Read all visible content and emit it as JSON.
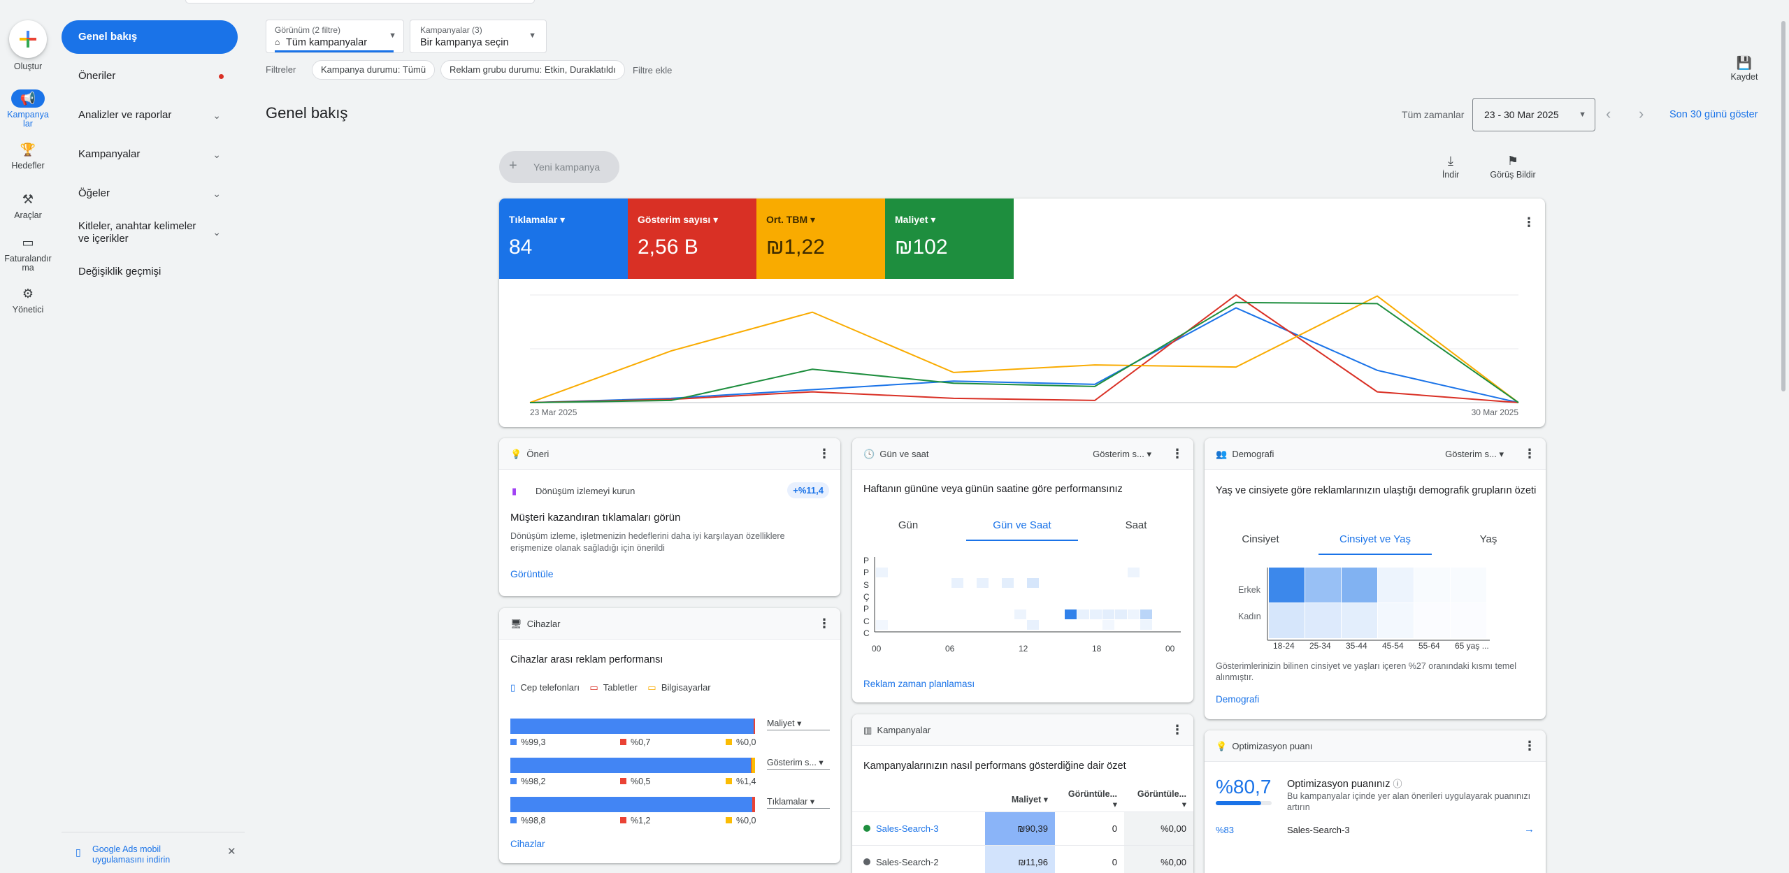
{
  "rail": {
    "create": "Oluştur",
    "campaigns": "Kampanyalar",
    "goals": "Hedefler",
    "tools": "Araçlar",
    "billing": "Faturalandırma",
    "admin": "Yönetici"
  },
  "nav": {
    "items": [
      {
        "label": "Genel bakış"
      },
      {
        "label": "Öneriler"
      },
      {
        "label": "Analizler ve raporlar"
      },
      {
        "label": "Kampanyalar"
      },
      {
        "label": "Öğeler"
      },
      {
        "label": "Kitleler, anahtar kelimeler ve içerikler"
      },
      {
        "label": "Değişiklik geçmişi"
      }
    ],
    "mobile_promo": "Google Ads mobil uygulamasını indirin"
  },
  "topbar": {
    "view_label": "Görünüm (2 filtre)",
    "view_value": "Tüm kampanyalar",
    "camp_label": "Kampanyalar (3)",
    "camp_value": "Bir kampanya seçin",
    "filters_label": "Filtreler",
    "chip1": "Kampanya durumu: Tümü",
    "chip2": "Reklam grubu durumu: Etkin, Duraklatıldı",
    "add_filter": "Filtre ekle",
    "save": "Kaydet"
  },
  "header": {
    "title": "Genel bakış",
    "all_time": "Tüm zamanlar",
    "date_range": "23 - 30 Mar 2025",
    "last30": "Son 30 günü göster"
  },
  "actions": {
    "new_campaign": "Yeni kampanya",
    "download": "İndir",
    "feedback": "Görüş Bildir"
  },
  "metrics": [
    {
      "label": "Tıklamalar",
      "value": "84",
      "color": "#1a73e8"
    },
    {
      "label": "Gösterim sayısı",
      "value": "2,56 B",
      "color": "#d93025"
    },
    {
      "label": "Ort. TBM",
      "value": "₪1,22",
      "color": "#f9ab00"
    },
    {
      "label": "Maliyet",
      "value": "₪102",
      "color": "#1e8e3e"
    }
  ],
  "chart_data": {
    "type": "line",
    "x": [
      "23 Mar 2025",
      "24 Mar 2025",
      "25 Mar 2025",
      "26 Mar 2025",
      "27 Mar 2025",
      "28 Mar 2025",
      "29 Mar 2025",
      "30 Mar 2025"
    ],
    "x_tick_labels": [
      "23 Mar 2025",
      "30 Mar 2025"
    ],
    "grid": true,
    "series": [
      {
        "values": [
          0,
          0.04,
          0.12,
          0.2,
          0.17,
          0.88,
          0.3,
          0
        ],
        "color": "#1a73e8"
      },
      {
        "values": [
          0,
          0.03,
          0.1,
          0.04,
          0.02,
          1.0,
          0.1,
          0
        ],
        "color": "#d93025"
      },
      {
        "values": [
          0,
          0.48,
          0.84,
          0.28,
          0.35,
          0.33,
          0.99,
          0
        ],
        "color": "#f9ab00"
      },
      {
        "values": [
          0,
          0.02,
          0.31,
          0.18,
          0.15,
          0.93,
          0.92,
          0
        ],
        "color": "#1e8e3e"
      }
    ]
  },
  "rec": {
    "title": "Öneri",
    "item": "Dönüşüm izlemeyi kurun",
    "badge": "+%11,4",
    "heading": "Müşteri kazandıran tıklamaları görün",
    "desc": "Dönüşüm izleme, işletmenizin hedeflerini daha iyi karşılayan özelliklere erişmenize olanak sağladığı için önerildi",
    "link": "Görüntüle"
  },
  "dayhour": {
    "title": "Gün ve saat",
    "metric": "Gösterim s...",
    "heading": "Haftanın gününe veya günün saatine göre performansınız",
    "tabs": [
      "Gün",
      "Gün ve Saat",
      "Saat"
    ],
    "days": [
      "P",
      "P",
      "S",
      "Ç",
      "P",
      "C",
      "C"
    ],
    "hours": [
      "00",
      "06",
      "12",
      "18",
      "00"
    ],
    "link": "Reklam zaman planlaması"
  },
  "demo": {
    "title": "Demografi",
    "metric": "Gösterim s...",
    "heading": "Yaş ve cinsiyete göre reklamlarınızın ulaştığı demografik grupların özeti",
    "tabs": [
      "Cinsiyet",
      "Cinsiyet ve Yaş",
      "Yaş"
    ],
    "rows": [
      "Erkek",
      "Kadın"
    ],
    "ages": [
      "18-24",
      "25-34",
      "35-44",
      "45-54",
      "55-64",
      "65 yaş ..."
    ],
    "note": "Gösterimlerinizin bilinen cinsiyet ve yaşları içeren %27 oranındaki kısmı temel alınmıştır.",
    "link": "Demografi"
  },
  "devices": {
    "title": "Cihazlar",
    "heading": "Cihazlar arası reklam performansı",
    "legend": [
      "Cep telefonları",
      "Tabletler",
      "Bilgisayarlar"
    ],
    "rows": [
      {
        "metric": "Maliyet",
        "mobile": "%99,3",
        "tablet": "%0,7",
        "desktop": "%0,0",
        "m": 99.3,
        "t": 0.7,
        "d": 0.0
      },
      {
        "metric": "Gösterim s...",
        "mobile": "%98,2",
        "tablet": "%0,5",
        "desktop": "%1,4",
        "m": 98.2,
        "t": 0.5,
        "d": 1.4
      },
      {
        "metric": "Tıklamalar",
        "mobile": "%98,8",
        "tablet": "%1,2",
        "desktop": "%0,0",
        "m": 98.8,
        "t": 1.2,
        "d": 0.0
      }
    ],
    "link": "Cihazlar"
  },
  "campaigns": {
    "title": "Kampanyalar",
    "heading": "Kampanyalarınızın nasıl performans gösterdiğine dair özet",
    "cols": [
      "Maliyet",
      "Görüntüle...",
      "Görüntüle..."
    ],
    "rows": [
      {
        "name": "Sales-Search-3",
        "cost": "₪90,39",
        "v1": "0",
        "v2": "%0,00",
        "dot": "#1e8e3e"
      },
      {
        "name": "Sales-Search-2",
        "cost": "₪11,96",
        "v1": "0",
        "v2": "%0,00",
        "dot": "#5f6368"
      }
    ]
  },
  "opt": {
    "title": "Optimizasyon puanı",
    "score": "%80,7",
    "score_pct": 80.7,
    "label": "Optimizasyon puanınız",
    "desc": "Bu kampanyalar içinde yer alan önerileri uygulayarak puanınızı artırın",
    "row_score": "%83",
    "row_name": "Sales-Search-3"
  }
}
